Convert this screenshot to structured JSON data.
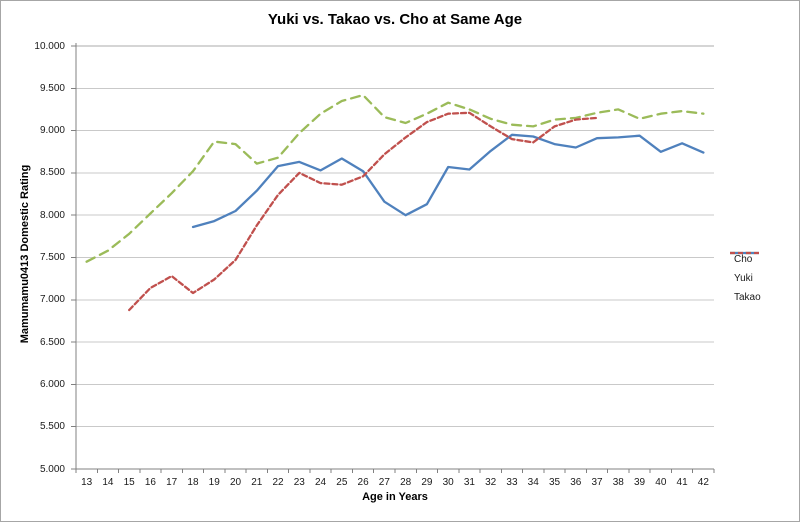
{
  "chart_data": {
    "type": "line",
    "title": "Yuki vs. Takao vs. Cho at Same Age",
    "xlabel": "Age in Years",
    "ylabel": "Mamumamu0413 Domestic Rating",
    "x_categories": [
      13,
      14,
      15,
      16,
      17,
      18,
      19,
      20,
      21,
      22,
      23,
      24,
      25,
      26,
      27,
      28,
      29,
      30,
      31,
      32,
      33,
      34,
      35,
      36,
      37,
      38,
      39,
      40,
      41,
      42
    ],
    "ylim": [
      5.0,
      10.0
    ],
    "y_tick_step": 0.5,
    "y_tick_labels": [
      "10.000",
      "9.500",
      "9.000",
      "8.500",
      "8.000",
      "7.500",
      "7.000",
      "6.500",
      "6.000",
      "5.500",
      "5.000"
    ],
    "grid": "horizontal",
    "legend_position": "right",
    "colors": {
      "cho": "#9BBB59",
      "yuki": "#4F81BD",
      "takao": "#C0504D",
      "gridline": "#C9C9C9",
      "top_gridline": "#ABABAB",
      "axis": "#808080",
      "border": "#A6A6A6"
    },
    "series": [
      {
        "name": "Cho",
        "color": "#9BBB59",
        "line_style": "long-dash",
        "start_x": 13,
        "values": [
          7.45,
          7.58,
          7.78,
          8.02,
          8.26,
          8.52,
          8.87,
          8.84,
          8.61,
          8.68,
          8.97,
          9.2,
          9.35,
          9.42,
          9.16,
          9.09,
          9.2,
          9.33,
          9.25,
          9.14,
          9.07,
          9.05,
          9.13,
          9.15,
          9.21,
          9.25,
          9.14,
          9.2,
          9.23,
          9.2
        ]
      },
      {
        "name": "Yuki",
        "color": "#4F81BD",
        "line_style": "solid",
        "start_x": 18,
        "values": [
          7.86,
          7.93,
          8.05,
          8.29,
          8.58,
          8.63,
          8.53,
          8.67,
          8.52,
          8.16,
          8.0,
          8.13,
          8.57,
          8.54,
          8.76,
          8.95,
          8.93,
          8.84,
          8.8,
          8.91,
          8.92,
          8.94,
          8.75,
          8.85,
          8.74
        ]
      },
      {
        "name": "Takao",
        "color": "#C0504D",
        "line_style": "short-dash",
        "start_x": 15,
        "values": [
          6.88,
          7.14,
          7.28,
          7.08,
          7.24,
          7.47,
          7.88,
          8.24,
          8.5,
          8.38,
          8.36,
          8.46,
          8.72,
          8.92,
          9.1,
          9.2,
          9.21,
          9.05,
          8.9,
          8.86,
          9.05,
          9.13,
          9.15
        ]
      }
    ]
  }
}
